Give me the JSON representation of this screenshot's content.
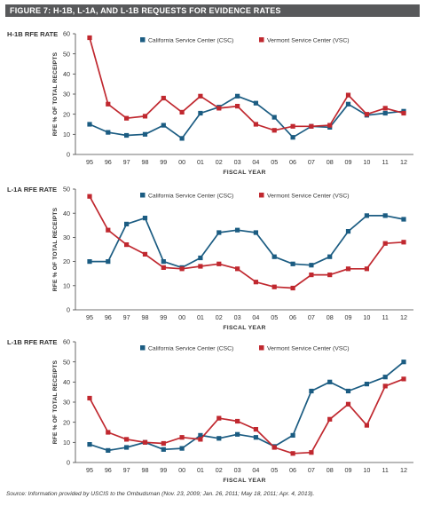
{
  "figure_title": "FIGURE 7:  H-1B, L-1A, AND L-1B REQUESTS FOR EVIDENCE RATES",
  "source_note": "Source: Information provided by USCIS to the Ombudsman (Nov. 23, 2009; Jan. 26, 2011; May 18, 2011; Apr. 4, 2013).",
  "colors": {
    "csc": "#1b5c82",
    "vsc": "#c0282f",
    "axis": "#444444",
    "header_bar": "#58595b"
  },
  "chart_data": [
    {
      "type": "line",
      "title": "H-1B RFE RATE",
      "xlabel": "FISCAL YEAR",
      "ylabel": "RFE % OF TOTAL RECEIPTS",
      "categories": [
        "95",
        "96",
        "97",
        "98",
        "99",
        "00",
        "01",
        "02",
        "03",
        "04",
        "05",
        "06",
        "07",
        "08",
        "09",
        "10",
        "11",
        "12"
      ],
      "ylim": [
        0,
        60
      ],
      "yticks": [
        0,
        10,
        20,
        30,
        40,
        50,
        60
      ],
      "legend_position": "top",
      "series": [
        {
          "name": "California Service Center (CSC)",
          "key": "csc",
          "values": [
            15,
            11,
            9.5,
            10,
            14.5,
            8,
            20.5,
            23.5,
            29,
            25.5,
            18.5,
            8.5,
            14,
            13.5,
            25,
            19.5,
            20.5,
            21.5
          ]
        },
        {
          "name": "Vermont Service Center (VSC)",
          "key": "vsc",
          "values": [
            58,
            25,
            18,
            19,
            28,
            21,
            29,
            23,
            24,
            15,
            12,
            14,
            14,
            14.5,
            29.5,
            20,
            23,
            20.5
          ]
        }
      ]
    },
    {
      "type": "line",
      "title": "L-1A RFE RATE",
      "xlabel": "FISCAL YEAR",
      "ylabel": "RFE % OF TOTAL RECEIPTS",
      "categories": [
        "95",
        "96",
        "97",
        "98",
        "99",
        "00",
        "01",
        "02",
        "03",
        "04",
        "05",
        "06",
        "07",
        "08",
        "09",
        "10",
        "11",
        "12"
      ],
      "ylim": [
        0,
        50
      ],
      "yticks": [
        0,
        10,
        20,
        30,
        40,
        50
      ],
      "legend_position": "top",
      "series": [
        {
          "name": "California Service Center (CSC)",
          "key": "csc",
          "values": [
            20,
            20,
            35.5,
            38,
            20,
            17.5,
            21.5,
            32,
            33,
            32,
            22,
            19,
            18.5,
            22,
            32.5,
            39,
            39,
            37.5
          ]
        },
        {
          "name": "Vermont Service Center (VSC)",
          "key": "vsc",
          "values": [
            47,
            33,
            27,
            23,
            17.5,
            17,
            18,
            19,
            17,
            11.5,
            9.5,
            9,
            14.5,
            14.5,
            17,
            17,
            27.5,
            28
          ]
        }
      ]
    },
    {
      "type": "line",
      "title": "L-1B RFE RATE",
      "xlabel": "FISCAL YEAR",
      "ylabel": "RFE % OF TOTAL RECEIPTS",
      "categories": [
        "95",
        "96",
        "97",
        "98",
        "99",
        "00",
        "01",
        "02",
        "03",
        "04",
        "05",
        "06",
        "07",
        "08",
        "09",
        "10",
        "11",
        "12"
      ],
      "ylim": [
        0,
        60
      ],
      "yticks": [
        0,
        10,
        20,
        30,
        40,
        50,
        60
      ],
      "legend_position": "top",
      "series": [
        {
          "name": "California Service Center (CSC)",
          "key": "csc",
          "values": [
            9,
            6,
            7.5,
            10,
            6.5,
            7,
            13.5,
            12,
            14,
            12.5,
            8,
            13.5,
            35.5,
            40,
            35.5,
            39,
            42.5,
            50
          ]
        },
        {
          "name": "Vermont Service Center (VSC)",
          "key": "vsc",
          "values": [
            32,
            15,
            11.5,
            10,
            9.5,
            12.5,
            11.5,
            22,
            20.5,
            16.5,
            7.5,
            4.5,
            5,
            21.5,
            29,
            18.5,
            38,
            41.5
          ]
        }
      ]
    }
  ]
}
